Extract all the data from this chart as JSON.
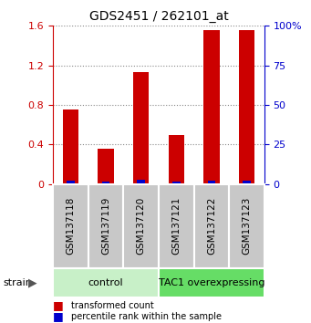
{
  "title": "GDS2451 / 262101_at",
  "samples": [
    "GSM137118",
    "GSM137119",
    "GSM137120",
    "GSM137121",
    "GSM137122",
    "GSM137123"
  ],
  "red_values": [
    0.75,
    0.36,
    1.13,
    0.5,
    1.56,
    1.56
  ],
  "blue_values": [
    2.0,
    1.5,
    2.5,
    1.5,
    2.0,
    2.0
  ],
  "ylim_left": [
    0,
    1.6
  ],
  "ylim_right": [
    0,
    100
  ],
  "yticks_left": [
    0,
    0.4,
    0.8,
    1.2,
    1.6
  ],
  "yticks_right": [
    0,
    25,
    50,
    75,
    100
  ],
  "ytick_labels_left": [
    "0",
    "0.4",
    "0.8",
    "1.2",
    "1.6"
  ],
  "ytick_labels_right": [
    "0",
    "25",
    "50",
    "75",
    "100%"
  ],
  "groups": [
    {
      "label": "control",
      "start": 0,
      "end": 3,
      "color": "#c8f0c8"
    },
    {
      "label": "TAC1 overexpressing",
      "start": 3,
      "end": 6,
      "color": "#66dd66"
    }
  ],
  "strain_label": "strain",
  "legend_items": [
    {
      "label": "transformed count",
      "color": "#cc0000"
    },
    {
      "label": "percentile rank within the sample",
      "color": "#0000cc"
    }
  ],
  "red_color": "#cc0000",
  "blue_color": "#0000cc",
  "grid_color": "#888888",
  "xticklabel_bg": "#c8c8c8",
  "left_axis_color": "#cc0000",
  "right_axis_color": "#0000cc",
  "bar_width": 0.45
}
